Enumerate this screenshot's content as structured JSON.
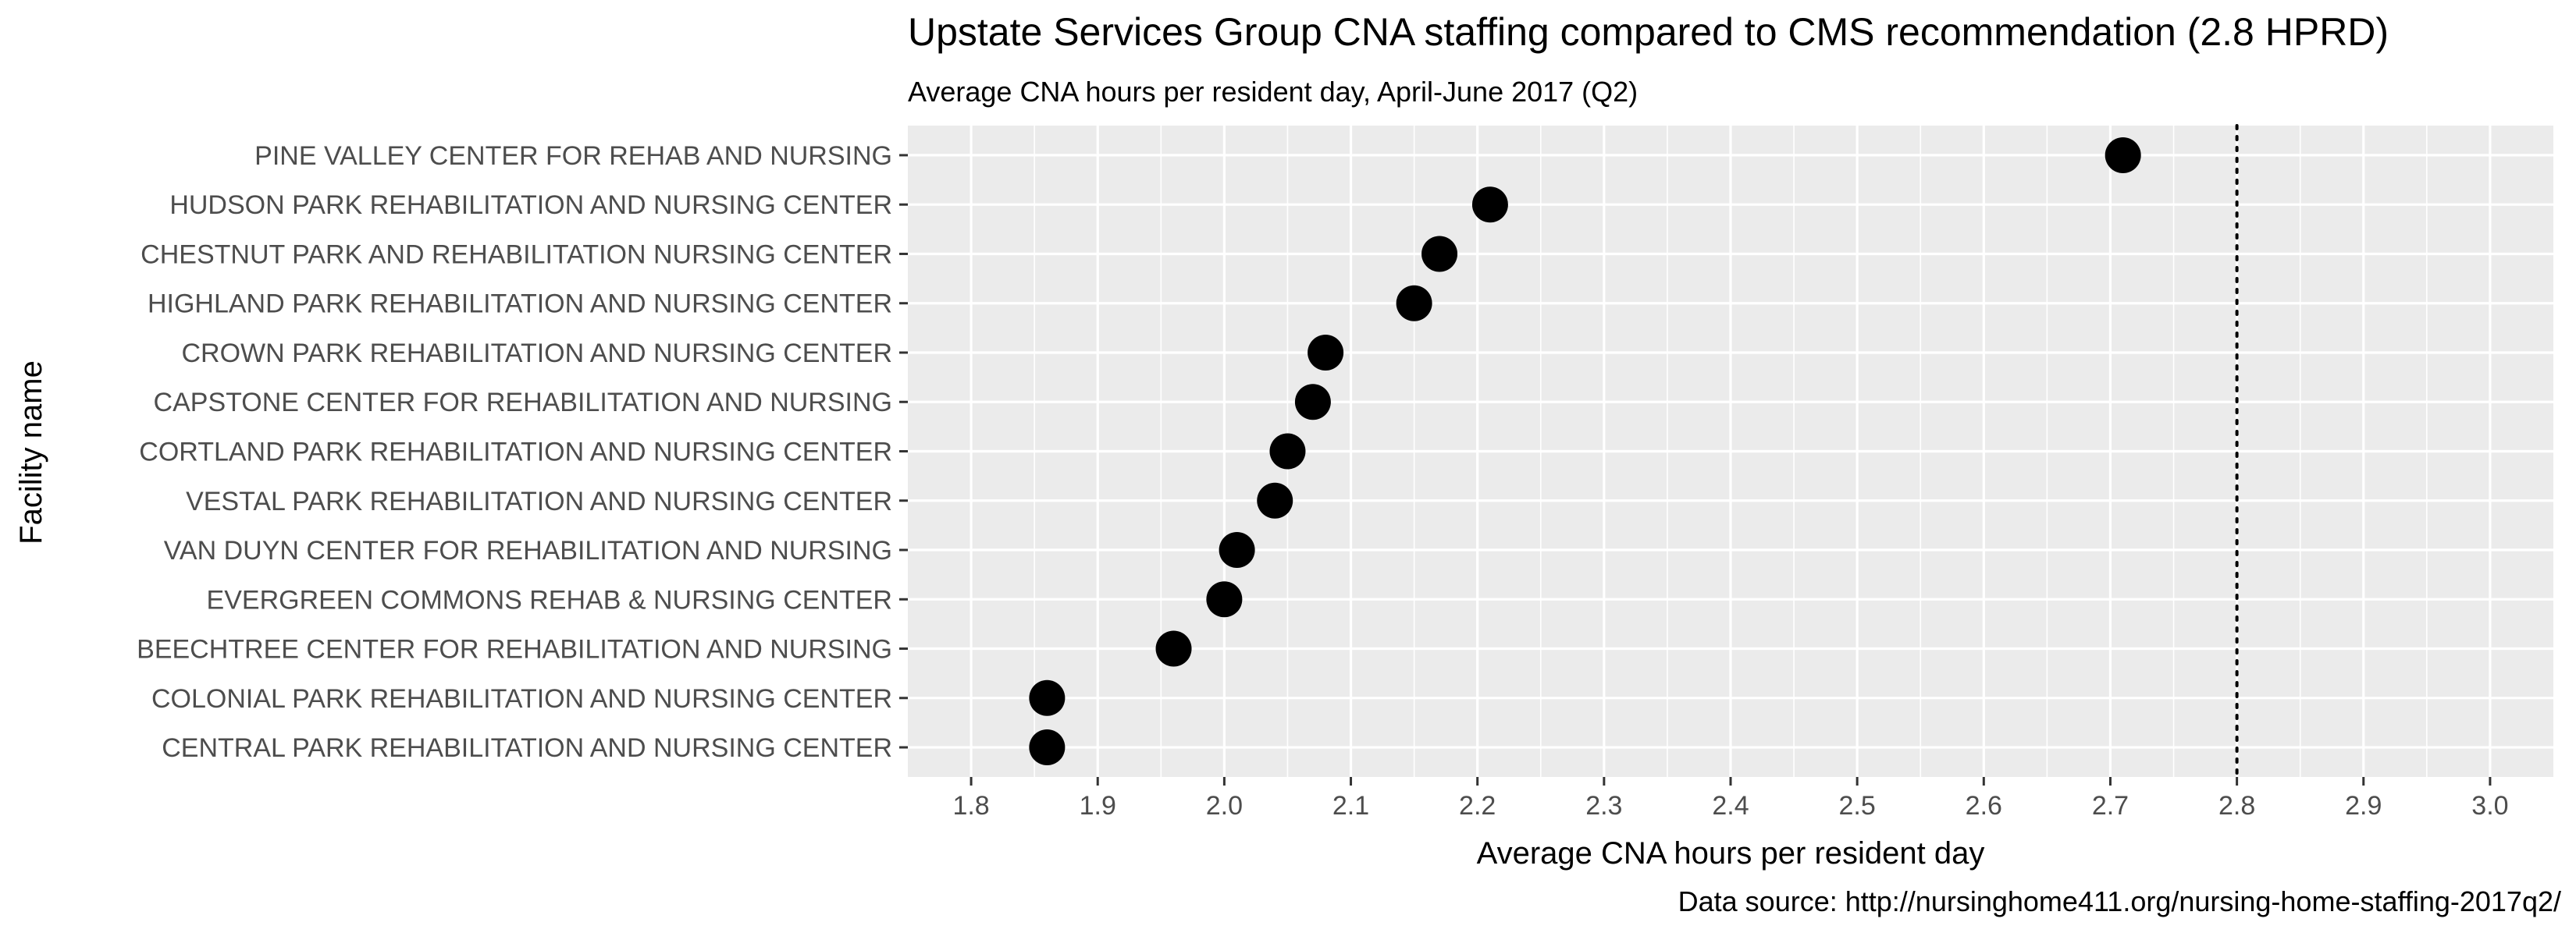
{
  "chart_data": {
    "type": "scatter",
    "title": "Upstate Services Group CNA staffing compared to CMS recommendation (2.8 HPRD)",
    "subtitle": "Average CNA hours per resident day, April-June 2017 (Q2)",
    "xlabel": "Average CNA hours per resident day",
    "ylabel": "Facility name",
    "caption": "Data source: http://nursinghome411.org/nursing-home-staffing-2017q2/",
    "xlim": [
      1.75,
      3.05
    ],
    "x_ticks": [
      1.8,
      1.9,
      2.0,
      2.1,
      2.2,
      2.3,
      2.4,
      2.5,
      2.6,
      2.7,
      2.8,
      2.9,
      3.0
    ],
    "x_tick_labels": [
      "1.8",
      "1.9",
      "2.0",
      "2.1",
      "2.2",
      "2.3",
      "2.4",
      "2.5",
      "2.6",
      "2.7",
      "2.8",
      "2.9",
      "3.0"
    ],
    "grid": true,
    "reference_line": {
      "x": 2.8,
      "style": "dotted"
    },
    "categories": [
      "PINE VALLEY CENTER FOR REHAB AND NURSING",
      "HUDSON PARK REHABILITATION AND NURSING CENTER",
      "CHESTNUT PARK AND REHABILITATION NURSING CENTER",
      "HIGHLAND PARK REHABILITATION AND NURSING CENTER",
      "CROWN PARK REHABILITATION AND NURSING CENTER",
      "CAPSTONE CENTER FOR REHABILITATION AND NURSING",
      "CORTLAND PARK REHABILITATION AND NURSING CENTER",
      "VESTAL PARK REHABILITATION AND NURSING CENTER",
      "VAN DUYN CENTER FOR REHABILITATION AND NURSING",
      "EVERGREEN COMMONS REHAB & NURSING CENTER",
      "BEECHTREE CENTER FOR REHABILITATION AND NURSING",
      "COLONIAL PARK REHABILITATION AND NURSING CENTER",
      "CENTRAL PARK REHABILITATION AND NURSING CENTER"
    ],
    "values": [
      2.71,
      2.21,
      2.17,
      2.15,
      2.08,
      2.07,
      2.05,
      2.04,
      2.01,
      2.0,
      1.96,
      1.86,
      1.86
    ]
  },
  "colors": {
    "panel_background": "#ebebeb",
    "grid_major": "#ffffff",
    "point": "#000000",
    "text_axis": "#4d4d4d",
    "text_title": "#000000"
  }
}
